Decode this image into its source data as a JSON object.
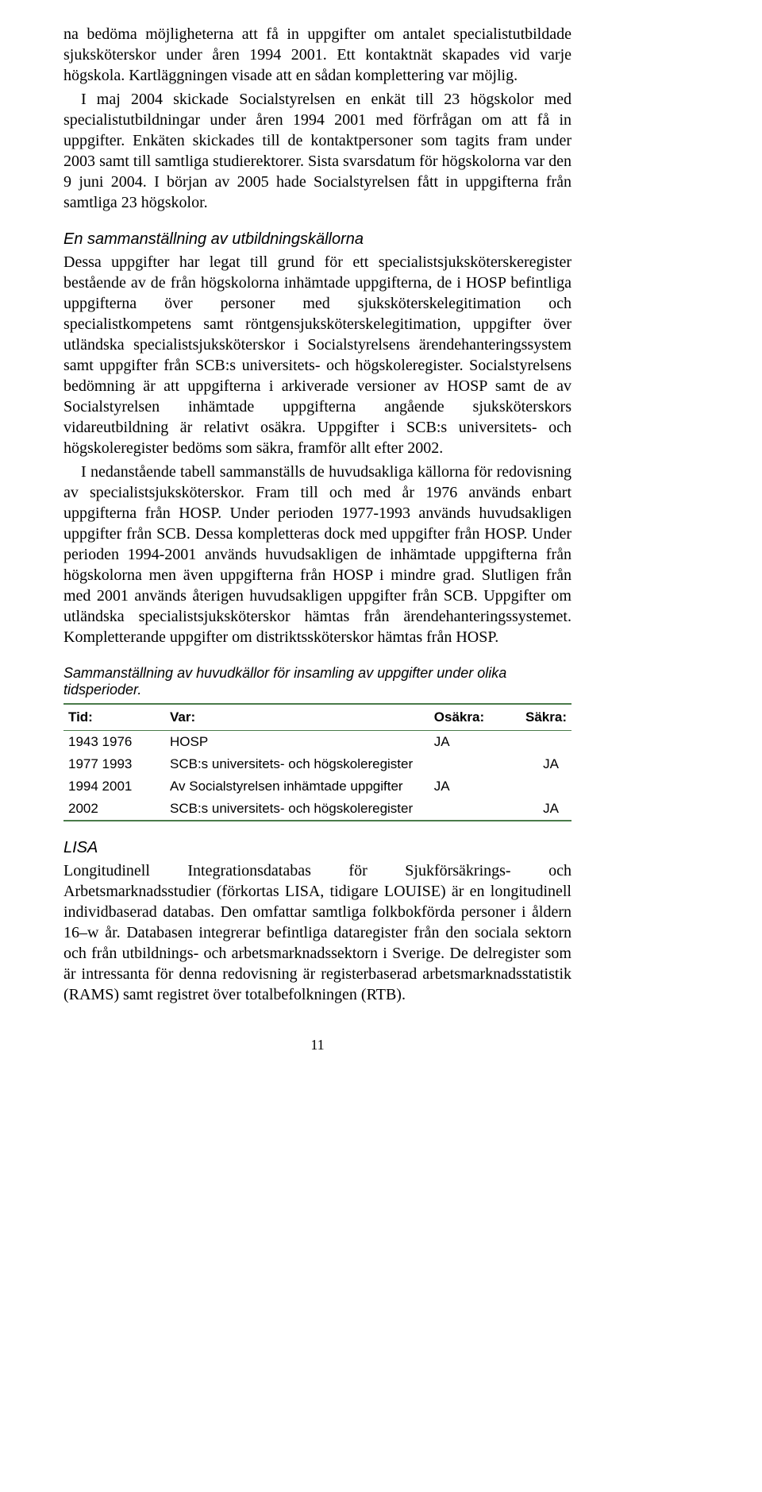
{
  "paragraphs": {
    "p1": "na bedöma möjligheterna att få in uppgifter om antalet specialistutbildade sjuksköterskor under åren 1994 2001. Ett kontaktnät skapades vid varje högskola. Kartläggningen visade att en sådan komplettering var möjlig.",
    "p2": "I maj 2004 skickade Socialstyrelsen en enkät till 23 högskolor med specialistutbildningar under åren 1994 2001 med förfrågan om att få in uppgifter. Enkäten skickades till de kontaktpersoner som tagits fram under 2003 samt till samtliga studierektorer. Sista svarsdatum för högskolorna var den 9 juni 2004. I början av 2005 hade Socialstyrelsen fått in uppgifterna från samtliga 23 högskolor.",
    "h1": "En sammanställning av utbildningskällorna",
    "p3": "Dessa uppgifter har legat till grund för ett specialistsjuksköterskeregister bestående av de från högskolorna inhämtade uppgifterna, de i HOSP befintliga uppgifterna över personer med sjuksköterskelegitimation och specialistkompetens samt röntgensjuksköterskelegitimation, uppgifter över utländska specialistsjuksköterskor i Socialstyrelsens ärendehanteringssystem samt uppgifter från SCB:s universitets- och högskoleregister. Socialstyrelsens bedömning är att uppgifterna i arkiverade versioner av HOSP samt de av Socialstyrelsen inhämtade uppgifterna angående sjuksköterskors vidareutbildning är relativt osäkra. Uppgifter i SCB:s universitets- och högskoleregister bedöms som säkra, framför allt efter 2002.",
    "p4": "I nedanstående tabell sammanställs de huvudsakliga källorna för redovisning av specialistsjuksköterskor. Fram till och med år 1976 används enbart uppgifterna från HOSP. Under perioden 1977-1993 används huvudsakligen uppgifter från SCB. Dessa kompletteras dock med uppgifter från HOSP. Under perioden 1994-2001 används huvudsakligen de inhämtade uppgifterna från högskolorna men även uppgifterna från HOSP i mindre grad. Slutligen från med 2001 används återigen huvudsakligen uppgifter från SCB. Uppgifter om utländska specialistsjuksköterskor hämtas från ärendehanteringssystemet. Kompletterande uppgifter om distriktssköterskor hämtas från HOSP.",
    "tcaption": "Sammanställning av huvudkällor för insamling av uppgifter under olika tidsperioder.",
    "h2": "LISA",
    "p5": "Longitudinell Integrationsdatabas för Sjukförsäkrings- och Arbetsmarknadsstudier (förkortas LISA, tidigare LOUISE) är en longitudinell individbaserad databas. Den omfattar samtliga folkbokförda personer i åldern 16–w år. Databasen integrerar befintliga dataregister från den sociala sektorn och från utbildnings- och arbetsmarknadssektorn i Sverige. De delregister som är intressanta för denna redovisning är registerbaserad arbetsmarknadsstatistik (RAMS) samt registret över totalbefolkningen (RTB)."
  },
  "table": {
    "columns": {
      "tid": "Tid:",
      "var": "Var:",
      "osakra": "Osäkra:",
      "sakra": "Säkra:"
    },
    "rows": [
      {
        "tid": "1943 1976",
        "var": "HOSP",
        "osakra": "JA",
        "sakra": ""
      },
      {
        "tid": "1977 1993",
        "var": "SCB:s universitets- och högskoleregister",
        "osakra": "",
        "sakra": "JA"
      },
      {
        "tid": "1994 2001",
        "var": "Av Socialstyrelsen inhämtade uppgifter",
        "osakra": "JA",
        "sakra": ""
      },
      {
        "tid": "2002",
        "var": "SCB:s universitets- och högskoleregister",
        "osakra": "",
        "sakra": "JA"
      }
    ],
    "border_color": "#4a7a4a"
  },
  "page_number": "11"
}
